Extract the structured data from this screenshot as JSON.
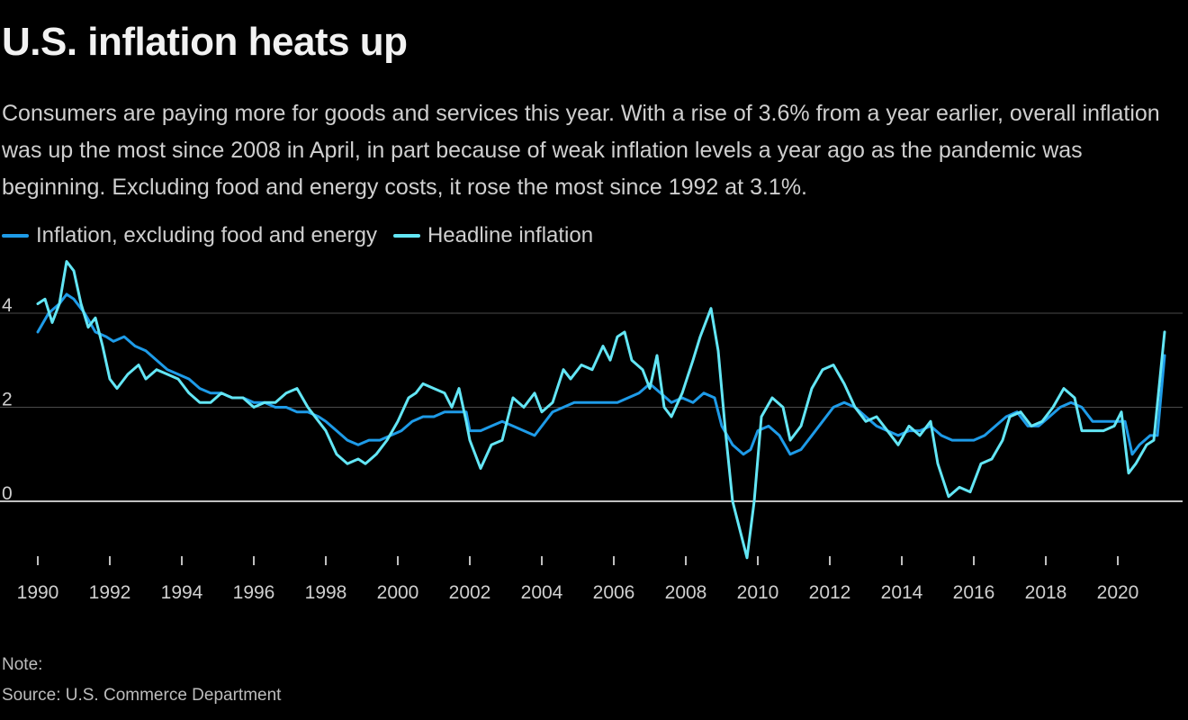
{
  "title": "U.S. inflation heats up",
  "subtitle": "Consumers are paying more for goods and services this year. With a rise of 3.6% from a year earlier, overall inflation was up the most since 2008 in April, in part because of weak inflation levels a year ago as the pandemic was beginning. Excluding food and energy costs, it rose the most since 1992 at 3.1%.",
  "note": "Note:",
  "source": "Source: U.S. Commerce Department",
  "colors": {
    "core": "#1e9be8",
    "headline": "#63e6f5",
    "grid": "#4a4a4a",
    "zero": "#ffffff",
    "axis_text": "#cfcfcf"
  },
  "chart_data": {
    "type": "line",
    "xlim": [
      1990,
      2021.6
    ],
    "ylim": [
      -1.3,
      5.3
    ],
    "yticks": [
      0,
      2,
      4
    ],
    "ytick_labels": [
      "0",
      "2",
      "4"
    ],
    "xticks": [
      1990,
      1992,
      1994,
      1996,
      1998,
      2000,
      2002,
      2004,
      2006,
      2008,
      2010,
      2012,
      2014,
      2016,
      2018,
      2020
    ],
    "xtick_labels": [
      "1990",
      "1992",
      "1994",
      "1996",
      "1998",
      "2000",
      "2002",
      "2004",
      "2006",
      "2008",
      "2010",
      "2012",
      "2014",
      "2016",
      "2018",
      "2020"
    ],
    "grid": true,
    "legend_position": "top-left",
    "series": [
      {
        "name": "Inflation, excluding food and energy",
        "color": "#1e9be8",
        "points": [
          [
            1990.0,
            3.6
          ],
          [
            1990.3,
            4.0
          ],
          [
            1990.6,
            4.2
          ],
          [
            1990.8,
            4.4
          ],
          [
            1991.0,
            4.3
          ],
          [
            1991.3,
            4.0
          ],
          [
            1991.6,
            3.6
          ],
          [
            1991.9,
            3.5
          ],
          [
            1992.1,
            3.4
          ],
          [
            1992.4,
            3.5
          ],
          [
            1992.7,
            3.3
          ],
          [
            1993.0,
            3.2
          ],
          [
            1993.3,
            3.0
          ],
          [
            1993.6,
            2.8
          ],
          [
            1993.9,
            2.7
          ],
          [
            1994.2,
            2.6
          ],
          [
            1994.5,
            2.4
          ],
          [
            1994.8,
            2.3
          ],
          [
            1995.1,
            2.3
          ],
          [
            1995.4,
            2.2
          ],
          [
            1995.7,
            2.2
          ],
          [
            1996.0,
            2.1
          ],
          [
            1996.3,
            2.1
          ],
          [
            1996.6,
            2.0
          ],
          [
            1996.9,
            2.0
          ],
          [
            1997.2,
            1.9
          ],
          [
            1997.5,
            1.9
          ],
          [
            1997.8,
            1.8
          ],
          [
            1998.0,
            1.7
          ],
          [
            1998.3,
            1.5
          ],
          [
            1998.6,
            1.3
          ],
          [
            1998.9,
            1.2
          ],
          [
            1999.2,
            1.3
          ],
          [
            1999.5,
            1.3
          ],
          [
            1999.8,
            1.4
          ],
          [
            2000.1,
            1.5
          ],
          [
            2000.4,
            1.7
          ],
          [
            2000.7,
            1.8
          ],
          [
            2001.0,
            1.8
          ],
          [
            2001.3,
            1.9
          ],
          [
            2001.6,
            1.9
          ],
          [
            2001.9,
            1.9
          ],
          [
            2002.0,
            1.5
          ],
          [
            2002.3,
            1.5
          ],
          [
            2002.6,
            1.6
          ],
          [
            2002.9,
            1.7
          ],
          [
            2003.2,
            1.6
          ],
          [
            2003.5,
            1.5
          ],
          [
            2003.8,
            1.4
          ],
          [
            2004.0,
            1.6
          ],
          [
            2004.3,
            1.9
          ],
          [
            2004.6,
            2.0
          ],
          [
            2004.9,
            2.1
          ],
          [
            2005.2,
            2.1
          ],
          [
            2005.5,
            2.1
          ],
          [
            2005.8,
            2.1
          ],
          [
            2006.1,
            2.1
          ],
          [
            2006.4,
            2.2
          ],
          [
            2006.7,
            2.3
          ],
          [
            2007.0,
            2.5
          ],
          [
            2007.3,
            2.3
          ],
          [
            2007.6,
            2.1
          ],
          [
            2007.9,
            2.2
          ],
          [
            2008.2,
            2.1
          ],
          [
            2008.5,
            2.3
          ],
          [
            2008.8,
            2.2
          ],
          [
            2009.0,
            1.6
          ],
          [
            2009.3,
            1.2
          ],
          [
            2009.6,
            1.0
          ],
          [
            2009.8,
            1.1
          ],
          [
            2010.0,
            1.5
          ],
          [
            2010.3,
            1.6
          ],
          [
            2010.6,
            1.4
          ],
          [
            2010.9,
            1.0
          ],
          [
            2011.2,
            1.1
          ],
          [
            2011.5,
            1.4
          ],
          [
            2011.8,
            1.7
          ],
          [
            2012.1,
            2.0
          ],
          [
            2012.4,
            2.1
          ],
          [
            2012.7,
            2.0
          ],
          [
            2013.0,
            1.8
          ],
          [
            2013.3,
            1.6
          ],
          [
            2013.6,
            1.5
          ],
          [
            2013.9,
            1.4
          ],
          [
            2014.2,
            1.5
          ],
          [
            2014.5,
            1.5
          ],
          [
            2014.8,
            1.6
          ],
          [
            2015.1,
            1.4
          ],
          [
            2015.4,
            1.3
          ],
          [
            2015.7,
            1.3
          ],
          [
            2016.0,
            1.3
          ],
          [
            2016.3,
            1.4
          ],
          [
            2016.6,
            1.6
          ],
          [
            2016.9,
            1.8
          ],
          [
            2017.2,
            1.9
          ],
          [
            2017.5,
            1.6
          ],
          [
            2017.8,
            1.6
          ],
          [
            2018.1,
            1.8
          ],
          [
            2018.4,
            2.0
          ],
          [
            2018.7,
            2.1
          ],
          [
            2019.0,
            2.0
          ],
          [
            2019.3,
            1.7
          ],
          [
            2019.6,
            1.7
          ],
          [
            2019.9,
            1.7
          ],
          [
            2020.2,
            1.7
          ],
          [
            2020.4,
            1.0
          ],
          [
            2020.6,
            1.2
          ],
          [
            2020.9,
            1.4
          ],
          [
            2021.1,
            1.4
          ],
          [
            2021.3,
            3.1
          ]
        ]
      },
      {
        "name": "Headline inflation",
        "color": "#63e6f5",
        "points": [
          [
            1990.0,
            4.2
          ],
          [
            1990.2,
            4.3
          ],
          [
            1990.4,
            3.8
          ],
          [
            1990.6,
            4.2
          ],
          [
            1990.8,
            5.1
          ],
          [
            1991.0,
            4.9
          ],
          [
            1991.2,
            4.2
          ],
          [
            1991.4,
            3.7
          ],
          [
            1991.6,
            3.9
          ],
          [
            1991.8,
            3.3
          ],
          [
            1992.0,
            2.6
          ],
          [
            1992.2,
            2.4
          ],
          [
            1992.5,
            2.7
          ],
          [
            1992.8,
            2.9
          ],
          [
            1993.0,
            2.6
          ],
          [
            1993.3,
            2.8
          ],
          [
            1993.6,
            2.7
          ],
          [
            1993.9,
            2.6
          ],
          [
            1994.2,
            2.3
          ],
          [
            1994.5,
            2.1
          ],
          [
            1994.8,
            2.1
          ],
          [
            1995.1,
            2.3
          ],
          [
            1995.4,
            2.2
          ],
          [
            1995.7,
            2.2
          ],
          [
            1996.0,
            2.0
          ],
          [
            1996.3,
            2.1
          ],
          [
            1996.6,
            2.1
          ],
          [
            1996.9,
            2.3
          ],
          [
            1997.2,
            2.4
          ],
          [
            1997.5,
            2.0
          ],
          [
            1997.8,
            1.7
          ],
          [
            1998.0,
            1.5
          ],
          [
            1998.3,
            1.0
          ],
          [
            1998.6,
            0.8
          ],
          [
            1998.9,
            0.9
          ],
          [
            1999.1,
            0.8
          ],
          [
            1999.4,
            1.0
          ],
          [
            1999.7,
            1.3
          ],
          [
            2000.0,
            1.7
          ],
          [
            2000.3,
            2.2
          ],
          [
            2000.5,
            2.3
          ],
          [
            2000.7,
            2.5
          ],
          [
            2001.0,
            2.4
          ],
          [
            2001.3,
            2.3
          ],
          [
            2001.5,
            2.0
          ],
          [
            2001.7,
            2.4
          ],
          [
            2001.9,
            1.7
          ],
          [
            2002.0,
            1.3
          ],
          [
            2002.3,
            0.7
          ],
          [
            2002.6,
            1.2
          ],
          [
            2002.9,
            1.3
          ],
          [
            2003.2,
            2.2
          ],
          [
            2003.5,
            2.0
          ],
          [
            2003.8,
            2.3
          ],
          [
            2004.0,
            1.9
          ],
          [
            2004.3,
            2.1
          ],
          [
            2004.6,
            2.8
          ],
          [
            2004.8,
            2.6
          ],
          [
            2005.1,
            2.9
          ],
          [
            2005.4,
            2.8
          ],
          [
            2005.7,
            3.3
          ],
          [
            2005.9,
            3.0
          ],
          [
            2006.1,
            3.5
          ],
          [
            2006.3,
            3.6
          ],
          [
            2006.5,
            3.0
          ],
          [
            2006.8,
            2.8
          ],
          [
            2007.0,
            2.4
          ],
          [
            2007.2,
            3.1
          ],
          [
            2007.4,
            2.0
          ],
          [
            2007.6,
            1.8
          ],
          [
            2007.9,
            2.3
          ],
          [
            2008.2,
            3.0
          ],
          [
            2008.4,
            3.5
          ],
          [
            2008.7,
            4.1
          ],
          [
            2008.9,
            3.2
          ],
          [
            2009.1,
            1.5
          ],
          [
            2009.3,
            0.0
          ],
          [
            2009.5,
            -0.6
          ],
          [
            2009.7,
            -1.2
          ],
          [
            2009.9,
            0.0
          ],
          [
            2010.1,
            1.8
          ],
          [
            2010.4,
            2.2
          ],
          [
            2010.7,
            2.0
          ],
          [
            2010.9,
            1.3
          ],
          [
            2011.2,
            1.6
          ],
          [
            2011.5,
            2.4
          ],
          [
            2011.8,
            2.8
          ],
          [
            2012.1,
            2.9
          ],
          [
            2012.4,
            2.5
          ],
          [
            2012.7,
            2.0
          ],
          [
            2013.0,
            1.7
          ],
          [
            2013.3,
            1.8
          ],
          [
            2013.6,
            1.5
          ],
          [
            2013.9,
            1.2
          ],
          [
            2014.2,
            1.6
          ],
          [
            2014.5,
            1.4
          ],
          [
            2014.8,
            1.7
          ],
          [
            2015.0,
            0.8
          ],
          [
            2015.3,
            0.1
          ],
          [
            2015.6,
            0.3
          ],
          [
            2015.9,
            0.2
          ],
          [
            2016.2,
            0.8
          ],
          [
            2016.5,
            0.9
          ],
          [
            2016.8,
            1.3
          ],
          [
            2017.0,
            1.8
          ],
          [
            2017.3,
            1.9
          ],
          [
            2017.6,
            1.6
          ],
          [
            2017.9,
            1.7
          ],
          [
            2018.2,
            2.0
          ],
          [
            2018.5,
            2.4
          ],
          [
            2018.8,
            2.2
          ],
          [
            2019.0,
            1.5
          ],
          [
            2019.3,
            1.5
          ],
          [
            2019.6,
            1.5
          ],
          [
            2019.9,
            1.6
          ],
          [
            2020.1,
            1.9
          ],
          [
            2020.3,
            0.6
          ],
          [
            2020.5,
            0.8
          ],
          [
            2020.8,
            1.2
          ],
          [
            2021.0,
            1.3
          ],
          [
            2021.3,
            3.6
          ]
        ]
      }
    ]
  }
}
